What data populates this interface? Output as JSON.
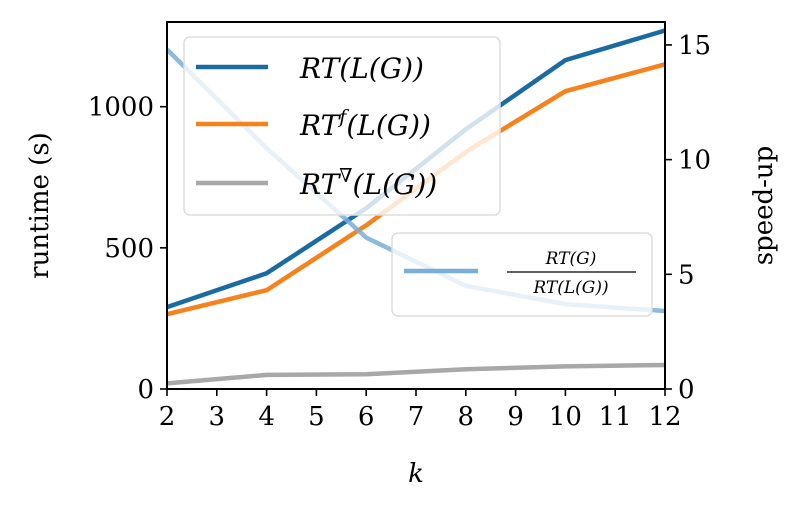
{
  "chart_data": {
    "type": "line",
    "xlabel": "k",
    "ylabel": "runtime (s)",
    "ylabel_right": "speed-up",
    "x": [
      2,
      4,
      6,
      8,
      10,
      12
    ],
    "xlim": [
      2,
      12
    ],
    "xticks": [
      "2",
      "3",
      "4",
      "5",
      "6",
      "7",
      "8",
      "9",
      "10",
      "11",
      "12"
    ],
    "ylim": [
      0,
      1300
    ],
    "yticks": [
      "0",
      "500",
      "1000"
    ],
    "ylim_right": [
      0,
      16
    ],
    "yticks_right": [
      "0",
      "5",
      "10",
      "15"
    ],
    "series": [
      {
        "name": "RT(L(G))",
        "axis": "left",
        "color": "#1a6aa3",
        "values": [
          290,
          410,
          640,
          920,
          1165,
          1270
        ]
      },
      {
        "name": "RT^f(L(G))",
        "axis": "left",
        "color": "#f7821c",
        "values": [
          265,
          350,
          580,
          840,
          1055,
          1150
        ]
      },
      {
        "name": "RT^∇(L(G))",
        "axis": "left",
        "color": "#a8a8a8",
        "values": [
          20,
          50,
          52,
          70,
          80,
          85
        ]
      },
      {
        "name": "RT(G) / RT(L(G))",
        "axis": "right",
        "color": "#7aaed7",
        "values": [
          14.8,
          10.5,
          6.6,
          4.5,
          3.7,
          3.4
        ]
      }
    ],
    "legend_left": {
      "position": "top-left",
      "items": [
        {
          "base": "RT",
          "sup": "",
          "rest": "(L(G))"
        },
        {
          "base": "RT",
          "sup": "f",
          "rest": "(L(G))"
        },
        {
          "base": "RT",
          "sup": "∇",
          "rest": "(L(G))"
        }
      ]
    },
    "legend_right": {
      "position": "center-right",
      "numerator": "RT(G)",
      "denominator": "RT(L(G))"
    }
  }
}
